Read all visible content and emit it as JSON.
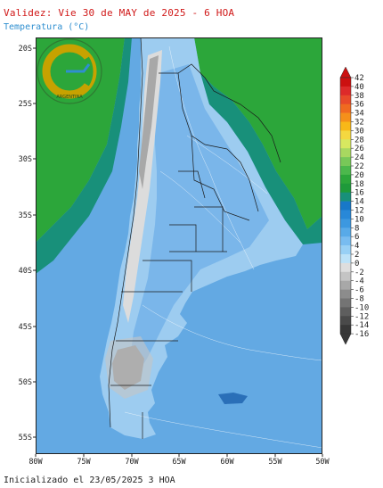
{
  "header": {
    "title": "Validez: Vie 30 de MAY de 2025 - 6 HOA",
    "subtitle": "Temperatura (°C)"
  },
  "footer": {
    "init_text": "Inicializado el 23/05/2025 3 HOA"
  },
  "map": {
    "lat_labels": [
      "20S",
      "25S",
      "30S",
      "35S",
      "40S",
      "45S",
      "50S",
      "55S"
    ],
    "lon_labels": [
      "80W",
      "75W",
      "70W",
      "65W",
      "60W",
      "55W",
      "50W"
    ],
    "logo_text": "ARGENTINA",
    "ocean_color": "#63a9e3",
    "land_color": "#9dccf0",
    "warm_color": "#2ca63a",
    "cold_color": "#8c8c8c"
  },
  "colorbar": {
    "labels": [
      "42",
      "40",
      "38",
      "36",
      "34",
      "32",
      "30",
      "28",
      "26",
      "24",
      "22",
      "20",
      "18",
      "16",
      "14",
      "12",
      "10",
      "8",
      "6",
      "4",
      "2",
      "0",
      "-2",
      "-4",
      "-6",
      "-8",
      "-10",
      "-12",
      "-14",
      "-16"
    ],
    "colors": [
      "#cc1010",
      "#dd2a2a",
      "#e84a2a",
      "#f06a20",
      "#f5901a",
      "#f8b818",
      "#f5d840",
      "#d8e860",
      "#a8d860",
      "#78c858",
      "#4cb84c",
      "#2ca63a",
      "#1e9a3a",
      "#18907a",
      "#1878c8",
      "#2888d8",
      "#3c98e0",
      "#58aae8",
      "#78bcf0",
      "#98d0f5",
      "#bce2f8",
      "#dedede",
      "#c4c4c4",
      "#a8a8a8",
      "#8c8c8c",
      "#747474",
      "#5e5e5e",
      "#4a4a4a",
      "#383838"
    ]
  }
}
